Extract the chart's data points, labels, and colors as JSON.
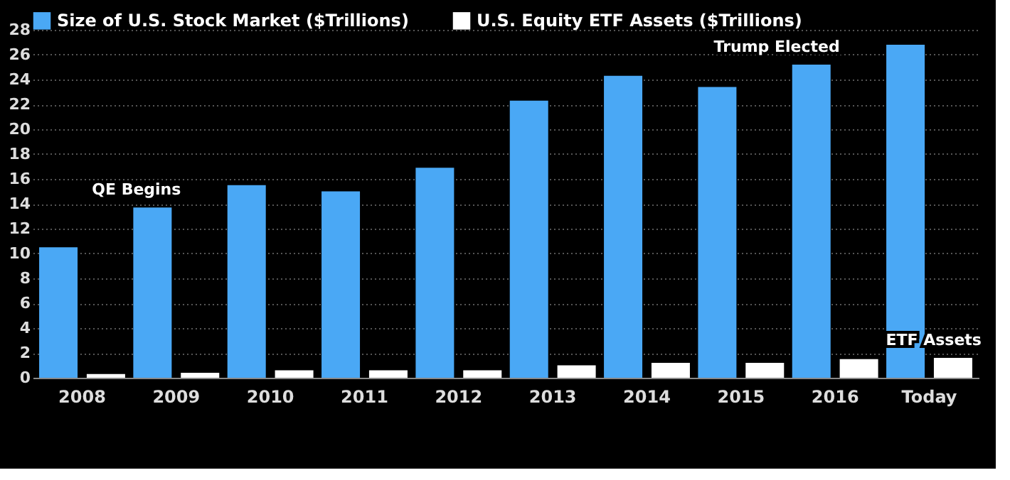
{
  "chart_data": {
    "type": "bar",
    "categories": [
      "2008",
      "2009",
      "2010",
      "2011",
      "2012",
      "2013",
      "2014",
      "2015",
      "2016",
      "Today"
    ],
    "series": [
      {
        "name": "Size of U.S. Stock Market ($Trillions)",
        "color": "#4aa8f5",
        "values": [
          10.5,
          13.7,
          15.5,
          15.0,
          16.9,
          22.3,
          24.3,
          23.4,
          25.2,
          26.8
        ]
      },
      {
        "name": "U.S. Equity ETF Assets ($Trillions)",
        "color": "#ffffff",
        "values": [
          0.3,
          0.4,
          0.6,
          0.6,
          0.6,
          1.0,
          1.2,
          1.2,
          1.5,
          1.6
        ]
      }
    ],
    "ylim": [
      0,
      28
    ],
    "yticks": [
      0,
      2,
      4,
      6,
      8,
      10,
      12,
      14,
      16,
      18,
      20,
      22,
      24,
      26,
      28
    ],
    "grid": "y",
    "legend": "top left",
    "annotations": [
      {
        "text": "QE Begins",
        "x": "2009",
        "y": 13.7
      },
      {
        "text": "Trump Elected",
        "x": "2016",
        "y": 25.2
      },
      {
        "text": "ETF Assets",
        "x": "Today",
        "y": 1.6
      }
    ]
  }
}
